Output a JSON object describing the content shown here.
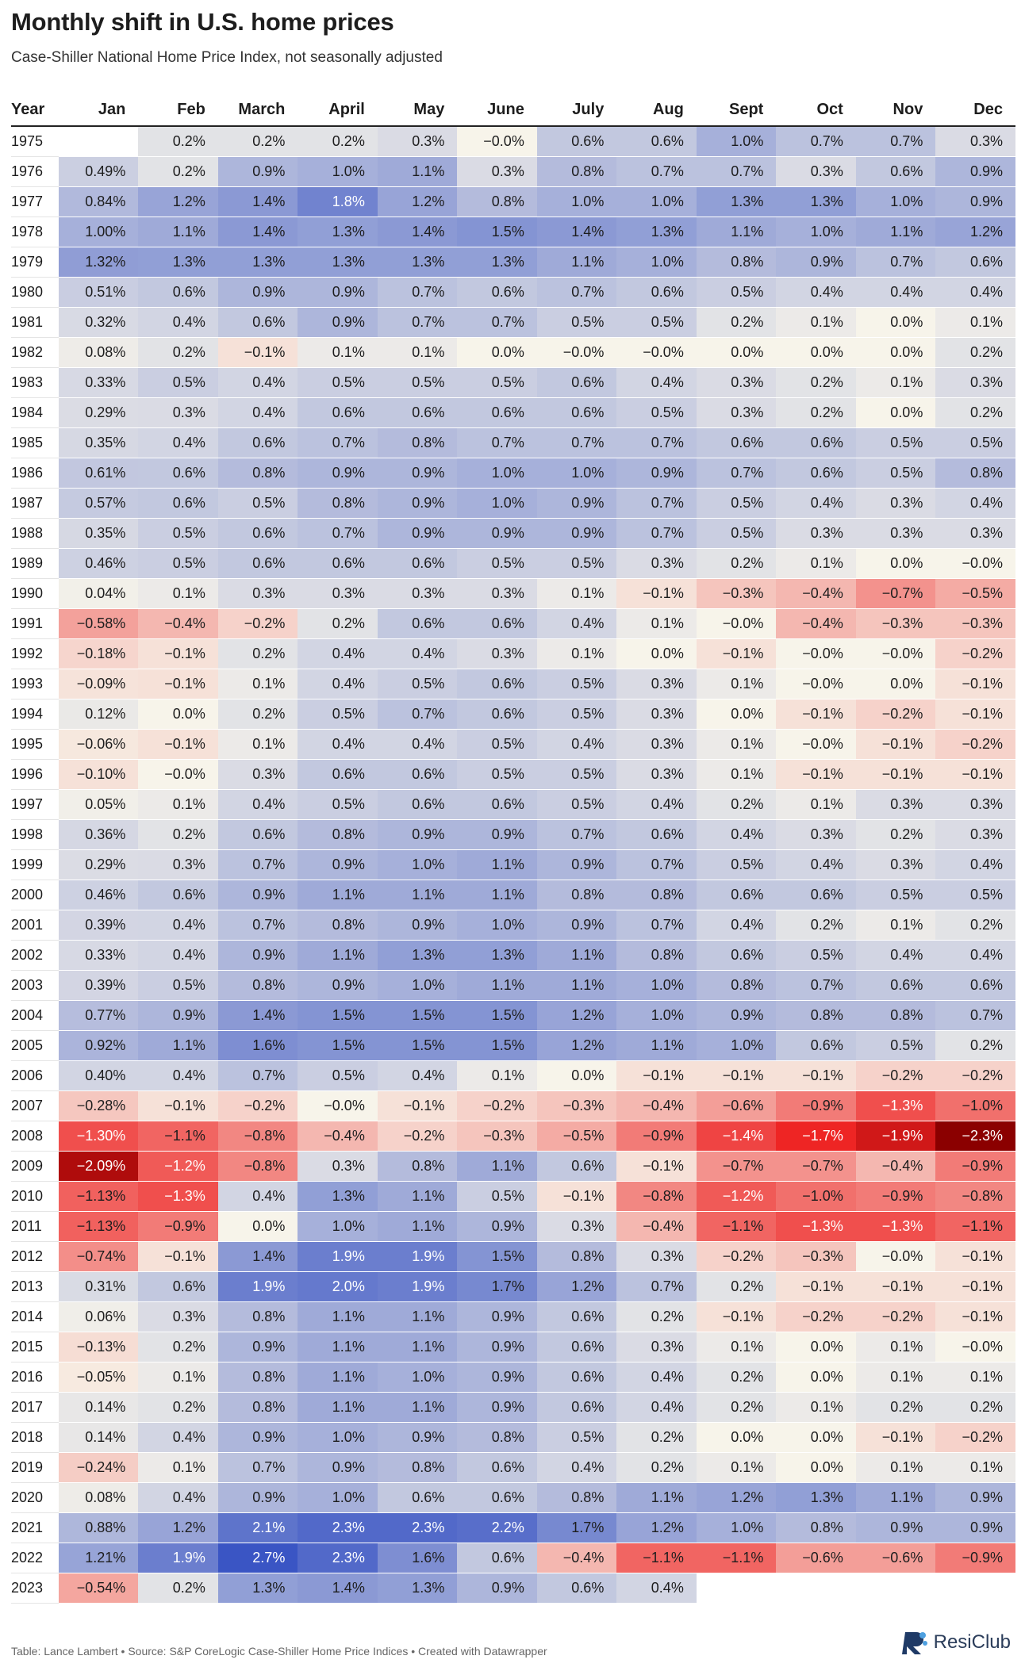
{
  "header": {
    "title": "Monthly shift in U.S. home prices",
    "subtitle": "Case-Shiller National Home Price Index, not seasonally adjusted"
  },
  "footer": {
    "credit": "Table: Lance Lambert • Source: S&P CoreLogic Case-Shiller Home Price Indices • Created with Datawrapper",
    "logo": "ResiClub",
    "logo_icon": "resiclub-logo-icon"
  },
  "colors": {
    "positive_max": "#3a55c4",
    "neutral": "#f7f4ea",
    "negative_max": "#8b0000",
    "negative_mid": "#ee2222"
  },
  "chart_data": {
    "type": "table",
    "columns": [
      "Year",
      "Jan",
      "Feb",
      "March",
      "April",
      "May",
      "June",
      "July",
      "Aug",
      "Sept",
      "Oct",
      "Nov",
      "Dec"
    ],
    "rows": [
      [
        "1975",
        "",
        "0.2%",
        "0.2%",
        "0.2%",
        "0.3%",
        "-0.0%",
        "0.6%",
        "0.6%",
        "1.0%",
        "0.7%",
        "0.7%",
        "0.3%"
      ],
      [
        "1976",
        "0.49%",
        "0.2%",
        "0.9%",
        "1.0%",
        "1.1%",
        "0.3%",
        "0.8%",
        "0.7%",
        "0.7%",
        "0.3%",
        "0.6%",
        "0.9%"
      ],
      [
        "1977",
        "0.84%",
        "1.2%",
        "1.4%",
        "1.8%",
        "1.2%",
        "0.8%",
        "1.0%",
        "1.0%",
        "1.3%",
        "1.3%",
        "1.0%",
        "0.9%"
      ],
      [
        "1978",
        "1.00%",
        "1.1%",
        "1.4%",
        "1.3%",
        "1.4%",
        "1.5%",
        "1.4%",
        "1.3%",
        "1.1%",
        "1.0%",
        "1.1%",
        "1.2%"
      ],
      [
        "1979",
        "1.32%",
        "1.3%",
        "1.3%",
        "1.3%",
        "1.3%",
        "1.3%",
        "1.1%",
        "1.0%",
        "0.8%",
        "0.9%",
        "0.7%",
        "0.6%"
      ],
      [
        "1980",
        "0.51%",
        "0.6%",
        "0.9%",
        "0.9%",
        "0.7%",
        "0.6%",
        "0.7%",
        "0.6%",
        "0.5%",
        "0.4%",
        "0.4%",
        "0.4%"
      ],
      [
        "1981",
        "0.32%",
        "0.4%",
        "0.6%",
        "0.9%",
        "0.7%",
        "0.7%",
        "0.5%",
        "0.5%",
        "0.2%",
        "0.1%",
        "0.0%",
        "0.1%"
      ],
      [
        "1982",
        "0.08%",
        "0.2%",
        "-0.1%",
        "0.1%",
        "0.1%",
        "0.0%",
        "-0.0%",
        "-0.0%",
        "0.0%",
        "0.0%",
        "0.0%",
        "0.2%"
      ],
      [
        "1983",
        "0.33%",
        "0.5%",
        "0.4%",
        "0.5%",
        "0.5%",
        "0.5%",
        "0.6%",
        "0.4%",
        "0.3%",
        "0.2%",
        "0.1%",
        "0.3%"
      ],
      [
        "1984",
        "0.29%",
        "0.3%",
        "0.4%",
        "0.6%",
        "0.6%",
        "0.6%",
        "0.6%",
        "0.5%",
        "0.3%",
        "0.2%",
        "0.0%",
        "0.2%"
      ],
      [
        "1985",
        "0.35%",
        "0.4%",
        "0.6%",
        "0.7%",
        "0.8%",
        "0.7%",
        "0.7%",
        "0.7%",
        "0.6%",
        "0.6%",
        "0.5%",
        "0.5%"
      ],
      [
        "1986",
        "0.61%",
        "0.6%",
        "0.8%",
        "0.9%",
        "0.9%",
        "1.0%",
        "1.0%",
        "0.9%",
        "0.7%",
        "0.6%",
        "0.5%",
        "0.8%"
      ],
      [
        "1987",
        "0.57%",
        "0.6%",
        "0.5%",
        "0.8%",
        "0.9%",
        "1.0%",
        "0.9%",
        "0.7%",
        "0.5%",
        "0.4%",
        "0.3%",
        "0.4%"
      ],
      [
        "1988",
        "0.35%",
        "0.5%",
        "0.6%",
        "0.7%",
        "0.9%",
        "0.9%",
        "0.9%",
        "0.7%",
        "0.5%",
        "0.3%",
        "0.3%",
        "0.3%"
      ],
      [
        "1989",
        "0.46%",
        "0.5%",
        "0.6%",
        "0.6%",
        "0.6%",
        "0.5%",
        "0.5%",
        "0.3%",
        "0.2%",
        "0.1%",
        "0.0%",
        "-0.0%"
      ],
      [
        "1990",
        "0.04%",
        "0.1%",
        "0.3%",
        "0.3%",
        "0.3%",
        "0.3%",
        "0.1%",
        "-0.1%",
        "-0.3%",
        "-0.4%",
        "-0.7%",
        "-0.5%"
      ],
      [
        "1991",
        "-0.58%",
        "-0.4%",
        "-0.2%",
        "0.2%",
        "0.6%",
        "0.6%",
        "0.4%",
        "0.1%",
        "-0.0%",
        "-0.4%",
        "-0.3%",
        "-0.3%"
      ],
      [
        "1992",
        "-0.18%",
        "-0.1%",
        "0.2%",
        "0.4%",
        "0.4%",
        "0.3%",
        "0.1%",
        "0.0%",
        "-0.1%",
        "-0.0%",
        "-0.0%",
        "-0.2%"
      ],
      [
        "1993",
        "-0.09%",
        "-0.1%",
        "0.1%",
        "0.4%",
        "0.5%",
        "0.6%",
        "0.5%",
        "0.3%",
        "0.1%",
        "-0.0%",
        "0.0%",
        "-0.1%"
      ],
      [
        "1994",
        "0.12%",
        "0.0%",
        "0.2%",
        "0.5%",
        "0.7%",
        "0.6%",
        "0.5%",
        "0.3%",
        "0.0%",
        "-0.1%",
        "-0.2%",
        "-0.1%"
      ],
      [
        "1995",
        "-0.06%",
        "-0.1%",
        "0.1%",
        "0.4%",
        "0.4%",
        "0.5%",
        "0.4%",
        "0.3%",
        "0.1%",
        "-0.0%",
        "-0.1%",
        "-0.2%"
      ],
      [
        "1996",
        "-0.10%",
        "-0.0%",
        "0.3%",
        "0.6%",
        "0.6%",
        "0.5%",
        "0.5%",
        "0.3%",
        "0.1%",
        "-0.1%",
        "-0.1%",
        "-0.1%"
      ],
      [
        "1997",
        "0.05%",
        "0.1%",
        "0.4%",
        "0.5%",
        "0.6%",
        "0.6%",
        "0.5%",
        "0.4%",
        "0.2%",
        "0.1%",
        "0.3%",
        "0.3%"
      ],
      [
        "1998",
        "0.36%",
        "0.2%",
        "0.6%",
        "0.8%",
        "0.9%",
        "0.9%",
        "0.7%",
        "0.6%",
        "0.4%",
        "0.3%",
        "0.2%",
        "0.3%"
      ],
      [
        "1999",
        "0.29%",
        "0.3%",
        "0.7%",
        "0.9%",
        "1.0%",
        "1.1%",
        "0.9%",
        "0.7%",
        "0.5%",
        "0.4%",
        "0.3%",
        "0.4%"
      ],
      [
        "2000",
        "0.46%",
        "0.6%",
        "0.9%",
        "1.1%",
        "1.1%",
        "1.1%",
        "0.8%",
        "0.8%",
        "0.6%",
        "0.6%",
        "0.5%",
        "0.5%"
      ],
      [
        "2001",
        "0.39%",
        "0.4%",
        "0.7%",
        "0.8%",
        "0.9%",
        "1.0%",
        "0.9%",
        "0.7%",
        "0.4%",
        "0.2%",
        "0.1%",
        "0.2%"
      ],
      [
        "2002",
        "0.33%",
        "0.4%",
        "0.9%",
        "1.1%",
        "1.3%",
        "1.3%",
        "1.1%",
        "0.8%",
        "0.6%",
        "0.5%",
        "0.4%",
        "0.4%"
      ],
      [
        "2003",
        "0.39%",
        "0.5%",
        "0.8%",
        "0.9%",
        "1.0%",
        "1.1%",
        "1.1%",
        "1.0%",
        "0.8%",
        "0.7%",
        "0.6%",
        "0.6%"
      ],
      [
        "2004",
        "0.77%",
        "0.9%",
        "1.4%",
        "1.5%",
        "1.5%",
        "1.5%",
        "1.2%",
        "1.0%",
        "0.9%",
        "0.8%",
        "0.8%",
        "0.7%"
      ],
      [
        "2005",
        "0.92%",
        "1.1%",
        "1.6%",
        "1.5%",
        "1.5%",
        "1.5%",
        "1.2%",
        "1.1%",
        "1.0%",
        "0.6%",
        "0.5%",
        "0.2%"
      ],
      [
        "2006",
        "0.40%",
        "0.4%",
        "0.7%",
        "0.5%",
        "0.4%",
        "0.1%",
        "0.0%",
        "-0.1%",
        "-0.1%",
        "-0.1%",
        "-0.2%",
        "-0.2%"
      ],
      [
        "2007",
        "-0.28%",
        "-0.1%",
        "-0.2%",
        "-0.0%",
        "-0.1%",
        "-0.2%",
        "-0.3%",
        "-0.4%",
        "-0.6%",
        "-0.9%",
        "-1.3%",
        "-1.0%"
      ],
      [
        "2008",
        "-1.30%",
        "-1.1%",
        "-0.8%",
        "-0.4%",
        "-0.2%",
        "-0.3%",
        "-0.5%",
        "-0.9%",
        "-1.4%",
        "-1.7%",
        "-1.9%",
        "-2.3%"
      ],
      [
        "2009",
        "-2.09%",
        "-1.2%",
        "-0.8%",
        "0.3%",
        "0.8%",
        "1.1%",
        "0.6%",
        "-0.1%",
        "-0.7%",
        "-0.7%",
        "-0.4%",
        "-0.9%"
      ],
      [
        "2010",
        "-1.13%",
        "-1.3%",
        "0.4%",
        "1.3%",
        "1.1%",
        "0.5%",
        "-0.1%",
        "-0.8%",
        "-1.2%",
        "-1.0%",
        "-0.9%",
        "-0.8%"
      ],
      [
        "2011",
        "-1.13%",
        "-0.9%",
        "0.0%",
        "1.0%",
        "1.1%",
        "0.9%",
        "0.3%",
        "-0.4%",
        "-1.1%",
        "-1.3%",
        "-1.3%",
        "-1.1%"
      ],
      [
        "2012",
        "-0.74%",
        "-0.1%",
        "1.4%",
        "1.9%",
        "1.9%",
        "1.5%",
        "0.8%",
        "0.3%",
        "-0.2%",
        "-0.3%",
        "-0.0%",
        "-0.1%"
      ],
      [
        "2013",
        "0.31%",
        "0.6%",
        "1.9%",
        "2.0%",
        "1.9%",
        "1.7%",
        "1.2%",
        "0.7%",
        "0.2%",
        "-0.1%",
        "-0.1%",
        "-0.1%"
      ],
      [
        "2014",
        "0.06%",
        "0.3%",
        "0.8%",
        "1.1%",
        "1.1%",
        "0.9%",
        "0.6%",
        "0.2%",
        "-0.1%",
        "-0.2%",
        "-0.2%",
        "-0.1%"
      ],
      [
        "2015",
        "-0.13%",
        "0.2%",
        "0.9%",
        "1.1%",
        "1.1%",
        "0.9%",
        "0.6%",
        "0.3%",
        "0.1%",
        "0.0%",
        "0.1%",
        "-0.0%"
      ],
      [
        "2016",
        "-0.05%",
        "0.1%",
        "0.8%",
        "1.1%",
        "1.0%",
        "0.9%",
        "0.6%",
        "0.4%",
        "0.2%",
        "0.0%",
        "0.1%",
        "0.1%"
      ],
      [
        "2017",
        "0.14%",
        "0.2%",
        "0.8%",
        "1.1%",
        "1.1%",
        "0.9%",
        "0.6%",
        "0.4%",
        "0.2%",
        "0.1%",
        "0.2%",
        "0.2%"
      ],
      [
        "2018",
        "0.14%",
        "0.4%",
        "0.9%",
        "1.0%",
        "0.9%",
        "0.8%",
        "0.5%",
        "0.2%",
        "0.0%",
        "0.0%",
        "-0.1%",
        "-0.2%"
      ],
      [
        "2019",
        "-0.24%",
        "0.1%",
        "0.7%",
        "0.9%",
        "0.8%",
        "0.6%",
        "0.4%",
        "0.2%",
        "0.1%",
        "0.0%",
        "0.1%",
        "0.1%"
      ],
      [
        "2020",
        "0.08%",
        "0.4%",
        "0.9%",
        "1.0%",
        "0.6%",
        "0.6%",
        "0.8%",
        "1.1%",
        "1.2%",
        "1.3%",
        "1.1%",
        "0.9%"
      ],
      [
        "2021",
        "0.88%",
        "1.2%",
        "2.1%",
        "2.3%",
        "2.3%",
        "2.2%",
        "1.7%",
        "1.2%",
        "1.0%",
        "0.8%",
        "0.9%",
        "0.9%"
      ],
      [
        "2022",
        "1.21%",
        "1.9%",
        "2.7%",
        "2.3%",
        "1.6%",
        "0.6%",
        "-0.4%",
        "-1.1%",
        "-1.1%",
        "-0.6%",
        "-0.6%",
        "-0.9%"
      ],
      [
        "2023",
        "-0.54%",
        "0.2%",
        "1.3%",
        "1.4%",
        "1.3%",
        "0.9%",
        "0.6%",
        "0.4%",
        "",
        "",
        "",
        ""
      ]
    ]
  }
}
